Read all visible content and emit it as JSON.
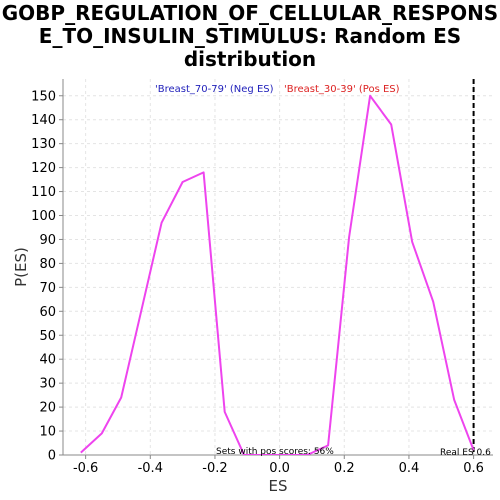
{
  "chart_data": {
    "type": "line",
    "title_lines": [
      "GOBP_REGULATION_OF_CELLULAR_RESPONS",
      "E_TO_INSULIN_STIMULUS: Random ES",
      "distribution"
    ],
    "xlabel": "ES",
    "ylabel": "P(ES)",
    "xlim": [
      -0.67,
      0.66
    ],
    "ylim": [
      0,
      157
    ],
    "xticks": [
      -0.6,
      -0.4,
      -0.2,
      0.0,
      0.2,
      0.4,
      0.6
    ],
    "xtick_labels": [
      "-0.6",
      "-0.4",
      "-0.2",
      "0.0",
      "0.2",
      "0.4",
      "0.6"
    ],
    "yticks": [
      0,
      10,
      20,
      30,
      40,
      50,
      60,
      70,
      80,
      90,
      100,
      110,
      120,
      130,
      140,
      150
    ],
    "ytick_labels": [
      "0",
      "10",
      "20",
      "30",
      "40",
      "50",
      "60",
      "70",
      "80",
      "90",
      "100",
      "110",
      "120",
      "130",
      "140",
      "150"
    ],
    "grid": true,
    "series": [
      {
        "color": "#ee44ee",
        "x": [
          -0.615,
          -0.55,
          -0.49,
          -0.43,
          -0.365,
          -0.3,
          -0.235,
          -0.17,
          -0.11,
          -0.045,
          0.02,
          0.085,
          0.15,
          0.215,
          0.28,
          0.345,
          0.41,
          0.475,
          0.54,
          0.6
        ],
        "y": [
          1,
          9,
          24,
          59,
          97,
          114,
          118,
          18,
          0,
          0,
          0,
          0,
          4,
          91,
          150,
          138,
          89,
          64,
          23,
          2
        ]
      }
    ],
    "legend": [
      {
        "label": "'Breast_70-79' (Neg ES)",
        "color": "#2222bb"
      },
      {
        "label": "'Breast_30-39' (Pos ES)",
        "color": "#dd2222"
      }
    ],
    "real_es_line": {
      "x": 0.6,
      "color": "#000000",
      "style": "dashed"
    },
    "annotations": {
      "pos_scores": "Sets with pos scores: 56%",
      "real_es": "Real ES 0.6"
    }
  }
}
